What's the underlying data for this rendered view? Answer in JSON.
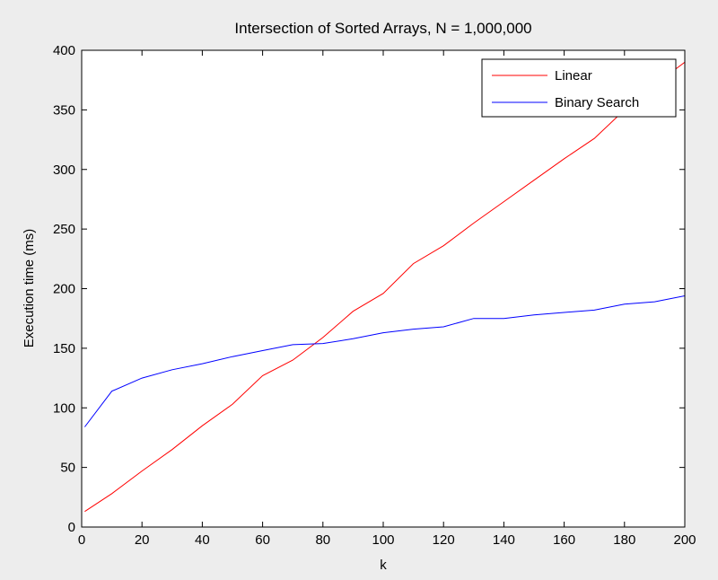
{
  "chart_data": {
    "type": "line",
    "title": "Intersection of Sorted Arrays, N = 1,000,000",
    "xlabel": "k",
    "ylabel": "Execution time (ms)",
    "xlim": [
      0,
      200
    ],
    "ylim": [
      0,
      400
    ],
    "x_ticks": [
      0,
      20,
      40,
      60,
      80,
      100,
      120,
      140,
      160,
      180,
      200
    ],
    "y_ticks": [
      0,
      50,
      100,
      150,
      200,
      250,
      300,
      350,
      400
    ],
    "grid": false,
    "legend_position": "top-right",
    "x": [
      1,
      10,
      20,
      30,
      40,
      50,
      60,
      70,
      80,
      90,
      100,
      110,
      120,
      130,
      140,
      150,
      160,
      170,
      180,
      190,
      200
    ],
    "series": [
      {
        "name": "Linear",
        "color": "#ff0000",
        "values": [
          13,
          28,
          47,
          65,
          85,
          103,
          127,
          140,
          159,
          181,
          196,
          221,
          236,
          255,
          273,
          291,
          309,
          326,
          350,
          371,
          390
        ]
      },
      {
        "name": "Binary Search",
        "color": "#0000ff",
        "values": [
          84,
          114,
          125,
          132,
          137,
          143,
          148,
          153,
          154,
          158,
          163,
          166,
          168,
          175,
          175,
          178,
          180,
          182,
          187,
          189,
          194
        ]
      }
    ]
  }
}
